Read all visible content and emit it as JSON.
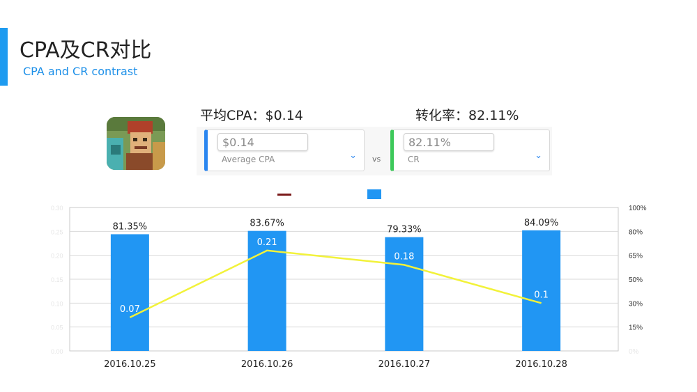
{
  "header": {
    "title": "CPA及CR对比",
    "subtitle": "CPA and CR contrast"
  },
  "app_icon": "pixel-art-app-icon",
  "kpis": {
    "cpa_heading": "平均CPA：$0.14",
    "cr_heading": "转化率：82.11%",
    "cpa_card": {
      "value": "$0.14",
      "label": "Average CPA"
    },
    "cr_card": {
      "value": "82.11%",
      "label": "CR"
    },
    "vs_label": "vs"
  },
  "colors": {
    "accent": "#1e9bf0",
    "bar": "#2196f3",
    "line": "#f2f23a",
    "cpa_card_edge": "#2a86f0",
    "cr_card_edge": "#3dc95a"
  },
  "chart_data": {
    "type": "bar",
    "categories": [
      "2016.10.25",
      "2016.10.26",
      "2016.10.27",
      "2016.10.28"
    ],
    "series": [
      {
        "kind": "bar",
        "axis": "right",
        "values": [
          81.35,
          83.67,
          79.33,
          84.09
        ],
        "labels": [
          "81.35%",
          "83.67%",
          "79.33%",
          "84.09%"
        ]
      },
      {
        "kind": "line",
        "axis": "left",
        "values": [
          0.07,
          0.21,
          0.18,
          0.1
        ],
        "labels": [
          "0.07",
          "0.21",
          "0.18",
          "0.1"
        ]
      }
    ],
    "left_axis": {
      "ylim": [
        0,
        0.3
      ],
      "ticks": [
        "0.00",
        "0.05",
        "0.10",
        "0.15",
        "0.20",
        "0.25",
        "0.30"
      ]
    },
    "right_axis": {
      "ylim": [
        0,
        100
      ],
      "ticks": [
        "0%",
        "15%",
        "30%",
        "50%",
        "65%",
        "80%",
        "100%"
      ]
    },
    "grid": true
  }
}
